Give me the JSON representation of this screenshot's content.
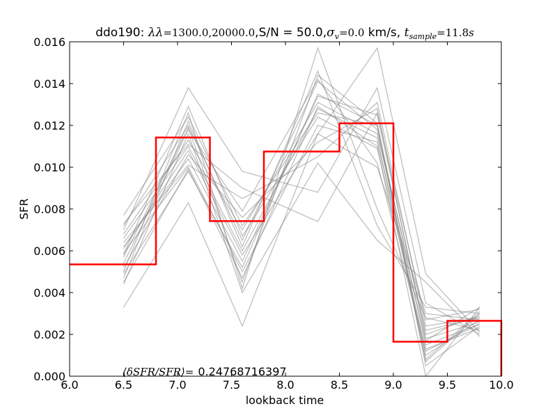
{
  "chart_data": {
    "type": "line",
    "title": {
      "prefix": "ddo190: ",
      "lambda": "λλ",
      "lambda_value": "=1300.0,20000.0",
      "sn": ",S/N = 50.0,",
      "sigma": "σ",
      "sigma_sub": "v",
      "sigma_value": "=0.0",
      "sigma_unit": " km/s, ",
      "t": "t",
      "t_sub": "sample",
      "t_value": "=11.8",
      "t_unit": "s"
    },
    "xlabel": "lookback time",
    "ylabel": "SFR",
    "xlim": [
      6.0,
      10.0
    ],
    "ylim": [
      0.0,
      0.016
    ],
    "xticks": [
      "6.0",
      "6.5",
      "7.0",
      "7.5",
      "8.0",
      "8.5",
      "9.0",
      "9.5",
      "10.0"
    ],
    "yticks": [
      "0.000",
      "0.002",
      "0.004",
      "0.006",
      "0.008",
      "0.010",
      "0.012",
      "0.014",
      "0.016"
    ],
    "grid": false,
    "annotation": {
      "math": "⟨δSFR/SFR⟩=",
      "value": "0.24768716397"
    },
    "true_sfh": {
      "color": "#ff0000",
      "step_x": [
        6.0,
        6.8,
        6.8,
        7.3,
        7.3,
        7.8,
        7.8,
        8.5,
        8.5,
        9.0,
        9.0,
        9.5,
        9.5,
        10.0,
        10.0
      ],
      "step_y": [
        0.00535,
        0.00535,
        0.01142,
        0.01142,
        0.00742,
        0.00742,
        0.01075,
        0.01075,
        0.0121,
        0.0121,
        0.00165,
        0.00165,
        0.00265,
        0.00265,
        0.0
      ]
    },
    "realizations": {
      "color": "#808080",
      "x": [
        6.5,
        7.1,
        7.6,
        8.3,
        8.85,
        9.3,
        9.8
      ],
      "series": [
        {
          "values": [
            0.0077,
            0.0124,
            0.0072,
            0.0126,
            0.012,
            0.0015,
            0.0025
          ]
        },
        {
          "values": [
            0.0072,
            0.012,
            0.0065,
            0.0141,
            0.0118,
            0.001,
            0.0027
          ]
        },
        {
          "values": [
            0.0068,
            0.0113,
            0.007,
            0.0131,
            0.0116,
            0.0022,
            0.0028
          ]
        },
        {
          "values": [
            0.0066,
            0.011,
            0.006,
            0.0128,
            0.0114,
            0.0008,
            0.0031
          ]
        },
        {
          "values": [
            0.0062,
            0.0104,
            0.0055,
            0.0134,
            0.0125,
            0.002,
            0.0029
          ]
        },
        {
          "values": [
            0.0059,
            0.01,
            0.005,
            0.012,
            0.0112,
            0.0017,
            0.0033
          ]
        },
        {
          "values": [
            0.0057,
            0.0119,
            0.0045,
            0.0144,
            0.0121,
            0.0005,
            0.0024
          ]
        },
        {
          "values": [
            0.0054,
            0.0118,
            0.0079,
            0.0142,
            0.0102,
            0.0012,
            0.0025
          ]
        },
        {
          "values": [
            0.005,
            0.0126,
            0.0042,
            0.0157,
            0.008,
            0.0028,
            0.0022
          ]
        },
        {
          "values": [
            0.0047,
            0.0122,
            0.0062,
            0.0146,
            0.0072,
            0.0033,
            0.003
          ]
        },
        {
          "values": [
            0.0044,
            0.0116,
            0.004,
            0.0102,
            0.0065,
            0.0045,
            0.0019
          ]
        },
        {
          "values": [
            0.0033,
            0.0083,
            0.0024,
            0.0116,
            0.0157,
            0.0049,
            0.0021
          ]
        },
        {
          "values": [
            0.007,
            0.0138,
            0.0098,
            0.0088,
            0.0138,
            0.0035,
            0.002
          ]
        },
        {
          "values": [
            0.0073,
            0.0111,
            0.009,
            0.0074,
            0.0126,
            0.0027,
            0.0032
          ]
        },
        {
          "values": [
            0.0064,
            0.0101,
            0.0085,
            0.0105,
            0.0131,
            0.0024,
            0.0028
          ]
        },
        {
          "values": [
            0.0052,
            0.0106,
            0.0076,
            0.0112,
            0.0128,
            0.0018,
            0.0026
          ]
        },
        {
          "values": [
            0.0058,
            0.0129,
            0.0067,
            0.0124,
            0.0109,
            0.0013,
            0.0023
          ]
        },
        {
          "values": [
            0.0049,
            0.0098,
            0.0052,
            0.0135,
            0.012,
            0.0007,
            0.003
          ]
        },
        {
          "values": [
            0.0061,
            0.0108,
            0.0058,
            0.0116,
            0.01,
            0.003,
            0.0027
          ]
        },
        {
          "values": [
            0.0045,
            0.0099,
            0.0047,
            0.0129,
            0.011,
            0.0,
            0.0033
          ]
        }
      ]
    }
  }
}
